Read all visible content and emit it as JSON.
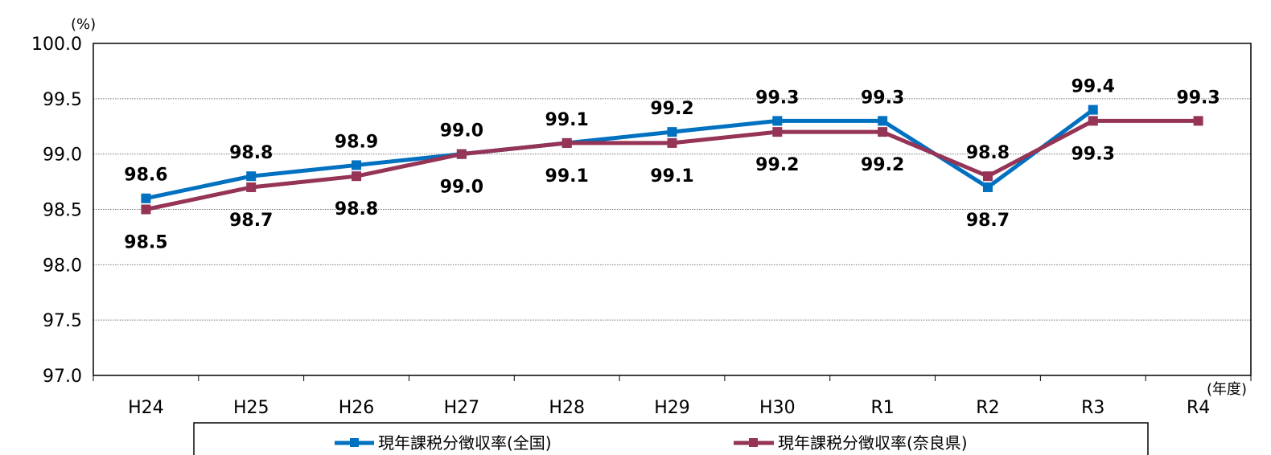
{
  "chart_data": {
    "type": "line",
    "categories": [
      "H24",
      "H25",
      "H26",
      "H27",
      "H28",
      "H29",
      "H30",
      "R1",
      "R2",
      "R3",
      "R4"
    ],
    "series": [
      {
        "name": "現年課税分徴収率(全国)",
        "color": "#0070C0",
        "values": [
          98.6,
          98.8,
          98.9,
          99.0,
          99.1,
          99.2,
          99.3,
          99.3,
          98.7,
          99.4,
          null
        ],
        "labels": [
          "98.6",
          "98.8",
          "98.9",
          "99.0",
          "99.1",
          "99.2",
          "99.3",
          "99.3",
          "98.7",
          "99.4",
          ""
        ]
      },
      {
        "name": "現年課税分徴収率(奈良県)",
        "color": "#953456",
        "values": [
          98.5,
          98.7,
          98.8,
          99.0,
          99.1,
          99.1,
          99.2,
          99.2,
          98.8,
          99.3,
          99.3
        ],
        "labels": [
          "98.5",
          "98.7",
          "98.8",
          "99.0",
          "99.1",
          "99.1",
          "99.2",
          "99.2",
          "98.8",
          "99.3",
          "99.3"
        ]
      }
    ],
    "y_unit": "(%)",
    "x_unit": "(年度)",
    "ylim": [
      97.0,
      100.0
    ],
    "y_ticks": [
      "97.0",
      "97.5",
      "98.0",
      "98.5",
      "99.0",
      "99.5",
      "100.0"
    ],
    "grid": "horizontal-dotted",
    "legend": "bottom"
  }
}
